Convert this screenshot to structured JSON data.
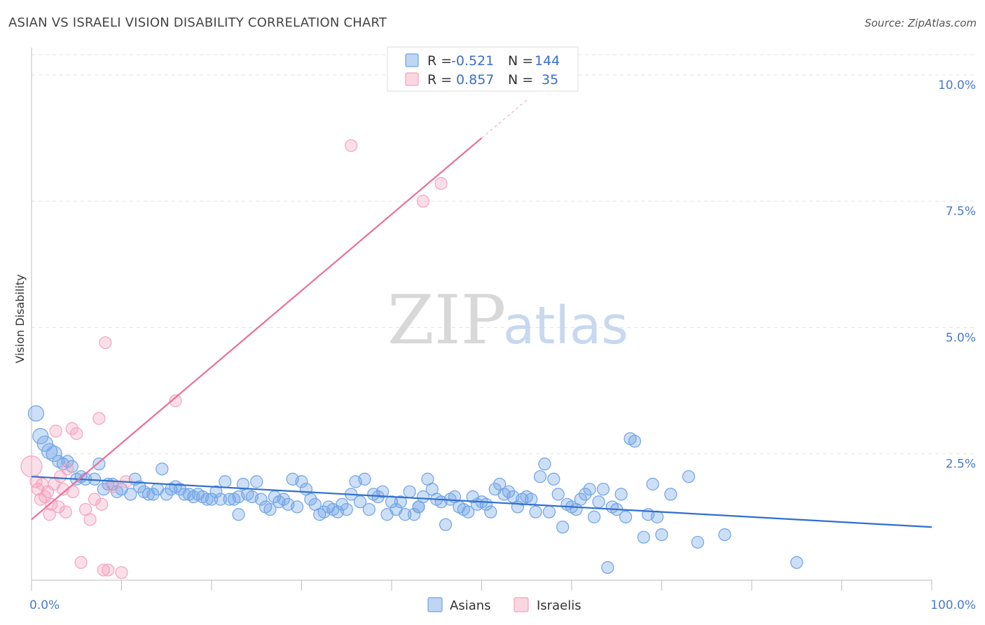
{
  "title": "ASIAN VS ISRAELI VISION DISABILITY CORRELATION CHART",
  "source": "Source: ZipAtlas.com",
  "watermark": {
    "zip": "ZIP",
    "atlas": "atlas"
  },
  "chart_data": {
    "type": "scatter",
    "ylabel": "Vision Disability",
    "xlim": [
      0,
      100
    ],
    "ylim": [
      0,
      10.4
    ],
    "x_tick_labels": [
      "0.0%",
      "100.0%"
    ],
    "y_ticks": [
      2.5,
      5.0,
      7.5,
      10.0
    ],
    "y_tick_labels": [
      "2.5%",
      "5.0%",
      "7.5%",
      "10.0%"
    ],
    "grid": true,
    "legend_top": [
      {
        "r_label": "R = ",
        "r_value": "-0.521",
        "n_label": "N = ",
        "n_value": "144",
        "color": "#6fa3e6"
      },
      {
        "r_label": "R = ",
        "r_value": "0.857",
        "n_label": "N = ",
        "n_value": "35",
        "color": "#f4a3bd"
      }
    ],
    "series": [
      {
        "name": "Asians",
        "color": "#6fa3e6",
        "line_color": "#2f6fce",
        "trend": {
          "x0": 0,
          "y0": 2.05,
          "x1": 100,
          "y1": 1.05
        },
        "points": [
          [
            0.5,
            3.3
          ],
          [
            1,
            2.85
          ],
          [
            1.5,
            2.7
          ],
          [
            2,
            2.55
          ],
          [
            2.5,
            2.5
          ],
          [
            3,
            2.35
          ],
          [
            3.5,
            2.3
          ],
          [
            4,
            2.35
          ],
          [
            4.5,
            2.25
          ],
          [
            5,
            2.0
          ],
          [
            5.5,
            2.05
          ],
          [
            6,
            2.0
          ],
          [
            7,
            2.0
          ],
          [
            7.5,
            2.3
          ],
          [
            8,
            1.8
          ],
          [
            8.5,
            1.9
          ],
          [
            9,
            1.9
          ],
          [
            9.5,
            1.75
          ],
          [
            10,
            1.8
          ],
          [
            11,
            1.7
          ],
          [
            11.5,
            2.0
          ],
          [
            12,
            1.85
          ],
          [
            12.5,
            1.75
          ],
          [
            13,
            1.7
          ],
          [
            13.5,
            1.7
          ],
          [
            14,
            1.8
          ],
          [
            14.5,
            2.2
          ],
          [
            15,
            1.7
          ],
          [
            15.5,
            1.8
          ],
          [
            16,
            1.85
          ],
          [
            16.5,
            1.8
          ],
          [
            17,
            1.7
          ],
          [
            17.5,
            1.7
          ],
          [
            18,
            1.65
          ],
          [
            18.5,
            1.7
          ],
          [
            19,
            1.65
          ],
          [
            19.5,
            1.6
          ],
          [
            20,
            1.6
          ],
          [
            20.5,
            1.75
          ],
          [
            21,
            1.6
          ],
          [
            21.5,
            1.95
          ],
          [
            22,
            1.6
          ],
          [
            22.5,
            1.6
          ],
          [
            23,
            1.65
          ],
          [
            23.5,
            1.9
          ],
          [
            24,
            1.7
          ],
          [
            24.5,
            1.65
          ],
          [
            25,
            1.95
          ],
          [
            25.5,
            1.6
          ],
          [
            26,
            1.45
          ],
          [
            26.5,
            1.4
          ],
          [
            27,
            1.65
          ],
          [
            27.5,
            1.55
          ],
          [
            28,
            1.6
          ],
          [
            28.5,
            1.5
          ],
          [
            29,
            2.0
          ],
          [
            29.5,
            1.45
          ],
          [
            30,
            1.95
          ],
          [
            30.5,
            1.8
          ],
          [
            31,
            1.6
          ],
          [
            31.5,
            1.5
          ],
          [
            32,
            1.3
          ],
          [
            32.5,
            1.35
          ],
          [
            33,
            1.45
          ],
          [
            33.5,
            1.4
          ],
          [
            34,
            1.35
          ],
          [
            34.5,
            1.5
          ],
          [
            35,
            1.4
          ],
          [
            35.5,
            1.7
          ],
          [
            36,
            1.95
          ],
          [
            36.5,
            1.55
          ],
          [
            37,
            2.0
          ],
          [
            37.5,
            1.4
          ],
          [
            38,
            1.7
          ],
          [
            38.5,
            1.65
          ],
          [
            39,
            1.75
          ],
          [
            39.5,
            1.3
          ],
          [
            40,
            1.55
          ],
          [
            40.5,
            1.4
          ],
          [
            41,
            1.55
          ],
          [
            41.5,
            1.3
          ],
          [
            42,
            1.75
          ],
          [
            42.5,
            1.3
          ],
          [
            43,
            1.45
          ],
          [
            43.5,
            1.65
          ],
          [
            44,
            2.0
          ],
          [
            44.5,
            1.8
          ],
          [
            45,
            1.6
          ],
          [
            45.5,
            1.55
          ],
          [
            46,
            1.1
          ],
          [
            46.5,
            1.6
          ],
          [
            47,
            1.65
          ],
          [
            47.5,
            1.45
          ],
          [
            48,
            1.4
          ],
          [
            48.5,
            1.35
          ],
          [
            49,
            1.65
          ],
          [
            49.5,
            1.5
          ],
          [
            50,
            1.55
          ],
          [
            50.5,
            1.5
          ],
          [
            51,
            1.35
          ],
          [
            51.5,
            1.8
          ],
          [
            52,
            1.9
          ],
          [
            52.5,
            1.7
          ],
          [
            53,
            1.75
          ],
          [
            53.5,
            1.65
          ],
          [
            54,
            1.45
          ],
          [
            54.5,
            1.6
          ],
          [
            55,
            1.65
          ],
          [
            55.5,
            1.6
          ],
          [
            56,
            1.35
          ],
          [
            56.5,
            2.05
          ],
          [
            57,
            2.3
          ],
          [
            57.5,
            1.35
          ],
          [
            58,
            2.0
          ],
          [
            58.5,
            1.7
          ],
          [
            59,
            1.05
          ],
          [
            59.5,
            1.5
          ],
          [
            60,
            1.45
          ],
          [
            60.5,
            1.4
          ],
          [
            61,
            1.6
          ],
          [
            61.5,
            1.7
          ],
          [
            62,
            1.8
          ],
          [
            62.5,
            1.25
          ],
          [
            63,
            1.55
          ],
          [
            63.5,
            1.8
          ],
          [
            64,
            0.25
          ],
          [
            64.5,
            1.45
          ],
          [
            65,
            1.4
          ],
          [
            65.5,
            1.7
          ],
          [
            66,
            1.25
          ],
          [
            66.5,
            2.8
          ],
          [
            67,
            2.75
          ],
          [
            68,
            0.85
          ],
          [
            68.5,
            1.3
          ],
          [
            69,
            1.9
          ],
          [
            69.5,
            1.25
          ],
          [
            70,
            0.9
          ],
          [
            71,
            1.7
          ],
          [
            73,
            2.05
          ],
          [
            74,
            0.75
          ],
          [
            77,
            0.9
          ],
          [
            85,
            0.35
          ],
          [
            23,
            1.3
          ],
          [
            43,
            1.45
          ]
        ]
      },
      {
        "name": "Israelis",
        "color": "#f4a3bd",
        "line_color": "#e8709a",
        "trend": {
          "x0": 0,
          "y0": 1.2,
          "x1": 50,
          "y1": 8.75,
          "dash_x1": 55,
          "dash_y1": 9.5
        },
        "points": [
          [
            0,
            2.25
          ],
          [
            0.5,
            1.95
          ],
          [
            0.7,
            1.8
          ],
          [
            1,
            1.6
          ],
          [
            1.5,
            1.65
          ],
          [
            1.8,
            1.75
          ],
          [
            2,
            1.3
          ],
          [
            2.2,
            1.5
          ],
          [
            2.5,
            1.9
          ],
          [
            2.7,
            2.95
          ],
          [
            3,
            1.45
          ],
          [
            3.2,
            2.05
          ],
          [
            3.5,
            1.8
          ],
          [
            3.8,
            1.35
          ],
          [
            4,
            2.2
          ],
          [
            4.5,
            3.0
          ],
          [
            4.6,
            1.75
          ],
          [
            5,
            2.9
          ],
          [
            5.5,
            0.35
          ],
          [
            6,
            1.4
          ],
          [
            6.5,
            1.2
          ],
          [
            7,
            1.6
          ],
          [
            7.5,
            3.2
          ],
          [
            7.8,
            1.5
          ],
          [
            8,
            0.2
          ],
          [
            8.2,
            4.7
          ],
          [
            8.5,
            0.2
          ],
          [
            9,
            1.85
          ],
          [
            10,
            0.15
          ],
          [
            10.5,
            1.95
          ],
          [
            16,
            3.55
          ],
          [
            35.5,
            8.6
          ],
          [
            43.5,
            7.5
          ],
          [
            45.5,
            7.85
          ],
          [
            1.2,
            1.9
          ]
        ]
      }
    ]
  }
}
